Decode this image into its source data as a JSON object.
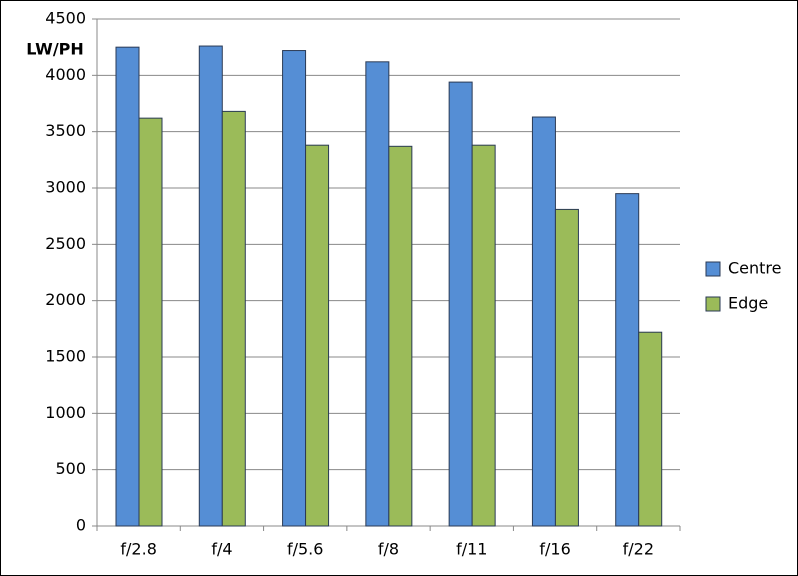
{
  "chart_data": {
    "type": "bar",
    "y_label": "LW/PH",
    "categories": [
      "f/2.8",
      "f/4",
      "f/5.6",
      "f/8",
      "f/11",
      "f/16",
      "f/22"
    ],
    "series": [
      {
        "name": "Centre",
        "color": "#558ed5",
        "values": [
          4250,
          4260,
          4220,
          4120,
          3940,
          3630,
          2950
        ]
      },
      {
        "name": "Edge",
        "color": "#9bbb59",
        "values": [
          3620,
          3680,
          3380,
          3370,
          3380,
          2810,
          1720
        ]
      }
    ],
    "ylim": [
      0,
      4500
    ],
    "yticks": [
      0,
      500,
      1000,
      1500,
      2000,
      2500,
      3000,
      3500,
      4000,
      4500
    ],
    "grid": true,
    "legend": "right"
  }
}
